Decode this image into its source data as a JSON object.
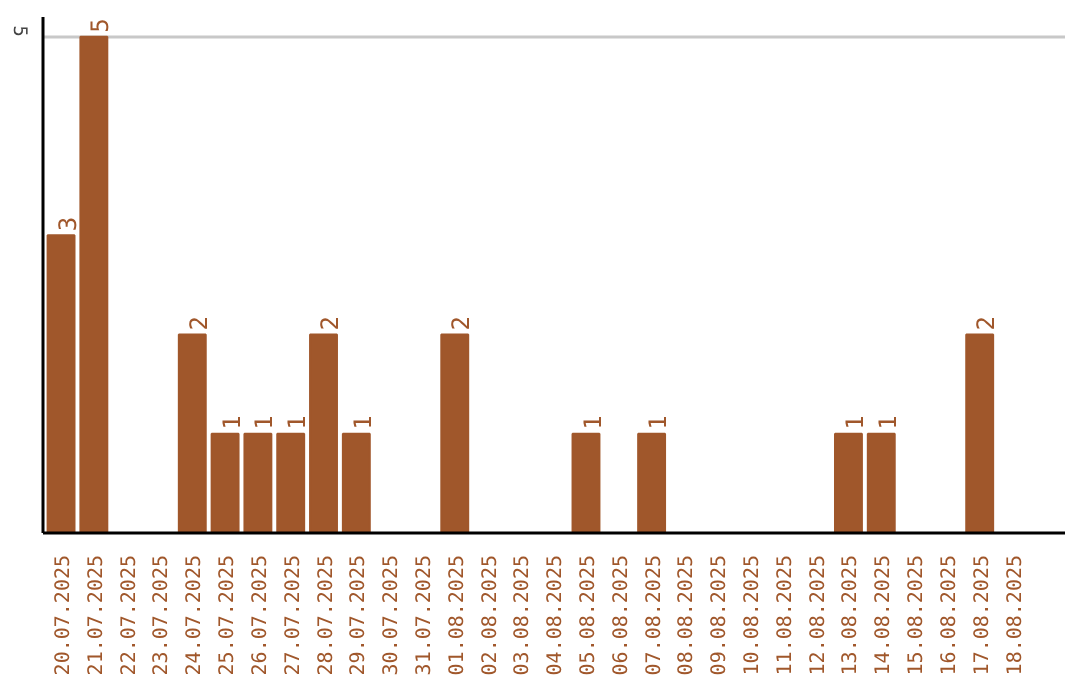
{
  "chart_data": {
    "type": "bar",
    "categories": [
      "20.07.2025",
      "21.07.2025",
      "22.07.2025",
      "23.07.2025",
      "24.07.2025",
      "25.07.2025",
      "26.07.2025",
      "27.07.2025",
      "28.07.2025",
      "29.07.2025",
      "30.07.2025",
      "31.07.2025",
      "01.08.2025",
      "02.08.2025",
      "03.08.2025",
      "04.08.2025",
      "05.08.2025",
      "06.08.2025",
      "07.08.2025",
      "08.08.2025",
      "09.08.2025",
      "10.08.2025",
      "11.08.2025",
      "12.08.2025",
      "13.08.2025",
      "14.08.2025",
      "15.08.2025",
      "16.08.2025",
      "17.08.2025",
      "18.08.2025"
    ],
    "values": [
      3,
      5,
      0,
      0,
      2,
      1,
      1,
      1,
      2,
      1,
      0,
      0,
      2,
      0,
      0,
      0,
      1,
      0,
      1,
      0,
      0,
      0,
      0,
      0,
      1,
      1,
      0,
      0,
      2,
      0
    ],
    "value_labels": [
      "3",
      "5",
      null,
      null,
      "2",
      "1",
      "1",
      "1",
      "2",
      "1",
      null,
      null,
      "2",
      null,
      null,
      null,
      "1",
      null,
      "1",
      null,
      null,
      null,
      null,
      null,
      "1",
      "1",
      null,
      null,
      "2",
      null
    ],
    "color": "#a0572b",
    "ylim": [
      0,
      5.2
    ],
    "yticks": [
      5
    ],
    "grid": "y"
  }
}
